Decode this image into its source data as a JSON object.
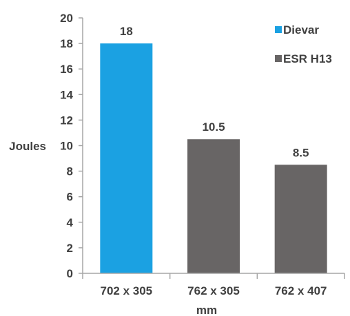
{
  "chart_data": {
    "type": "bar",
    "title": "",
    "xlabel": "mm",
    "ylabel": "Joules",
    "ylim": [
      0,
      20
    ],
    "y_ticks": [
      0,
      2,
      4,
      6,
      8,
      10,
      12,
      14,
      16,
      18,
      20
    ],
    "categories": [
      "702 x 305",
      "762 x 305",
      "762 x 407"
    ],
    "values": [
      18,
      10.5,
      8.5
    ],
    "data_labels": [
      "18",
      "10.5",
      "8.5"
    ],
    "bar_series": [
      "Dievar",
      "ESR H13",
      "ESR H13"
    ],
    "grid": false,
    "legend_position": "top-right",
    "legend": [
      {
        "name": "Dievar",
        "color": "#1ba1e2"
      },
      {
        "name": "ESR H13",
        "color": "#686565"
      }
    ]
  }
}
